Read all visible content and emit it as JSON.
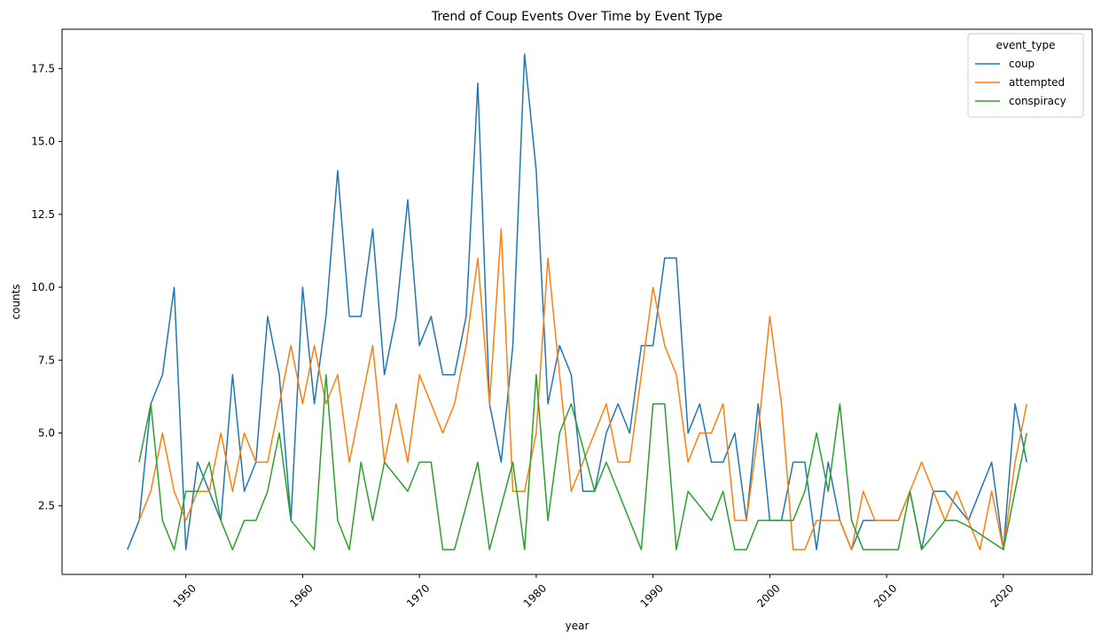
{
  "chart_data": {
    "type": "line",
    "title": "Trend of Coup Events Over Time by Event Type",
    "xlabel": "year",
    "ylabel": "counts",
    "xlim": [
      1939.4,
      2027.6
    ],
    "ylim": [
      0.15,
      18.85
    ],
    "xticks": [
      1950,
      1960,
      1970,
      1980,
      1990,
      2000,
      2010,
      2020
    ],
    "xtick_labels": [
      "1950",
      "1960",
      "1970",
      "1980",
      "1990",
      "2000",
      "2010",
      "2020"
    ],
    "xtick_rotation": 45,
    "yticks": [
      2.5,
      5.0,
      7.5,
      10.0,
      12.5,
      15.0,
      17.5
    ],
    "ytick_labels": [
      "2.5",
      "5.0",
      "7.5",
      "10.0",
      "12.5",
      "15.0",
      "17.5"
    ],
    "grid": false,
    "legend": {
      "title": "event_type",
      "placement": "upper-right"
    },
    "series": [
      {
        "name": "coup",
        "color": "#1f77b4",
        "x": [
          1945,
          1946,
          1947,
          1948,
          1949,
          1950,
          1951,
          1952,
          1953,
          1954,
          1955,
          1956,
          1957,
          1958,
          1959,
          1960,
          1961,
          1962,
          1963,
          1964,
          1965,
          1966,
          1967,
          1968,
          1969,
          1970,
          1971,
          1972,
          1973,
          1974,
          1975,
          1976,
          1977,
          1978,
          1979,
          1980,
          1981,
          1982,
          1983,
          1984,
          1985,
          1986,
          1987,
          1988,
          1989,
          1990,
          1991,
          1992,
          1993,
          1994,
          1995,
          1996,
          1997,
          1998,
          1999,
          2000,
          2001,
          2002,
          2003,
          2004,
          2005,
          2006,
          2007,
          2008,
          2009,
          2010,
          2011,
          2012,
          2013,
          2014,
          2015,
          2016,
          2017,
          2018,
          2019,
          2020,
          2021,
          2022
        ],
        "y": [
          1,
          2,
          6,
          7,
          10,
          1,
          4,
          3,
          2,
          7,
          3,
          4,
          9,
          7,
          2,
          10,
          6,
          9,
          14,
          9,
          9,
          12,
          7,
          9,
          13,
          8,
          9,
          7,
          7,
          9,
          17,
          6,
          4,
          8,
          18,
          14,
          6,
          8,
          7,
          3,
          3,
          5,
          6,
          5,
          8,
          8,
          11,
          11,
          5,
          6,
          4,
          4,
          5,
          2,
          6,
          2,
          2,
          4,
          4,
          1,
          4,
          2,
          1,
          2,
          2,
          2,
          2,
          3,
          1,
          3,
          3,
          2.5,
          2,
          3,
          4,
          1,
          6,
          4
        ]
      },
      {
        "name": "attempted",
        "color": "#ff7f0e",
        "x": [
          1946,
          1947,
          1948,
          1949,
          1950,
          1951,
          1952,
          1953,
          1954,
          1955,
          1956,
          1957,
          1958,
          1959,
          1960,
          1961,
          1962,
          1963,
          1964,
          1965,
          1966,
          1967,
          1968,
          1969,
          1970,
          1971,
          1972,
          1973,
          1974,
          1975,
          1976,
          1977,
          1978,
          1979,
          1980,
          1981,
          1982,
          1983,
          1984,
          1985,
          1986,
          1987,
          1988,
          1989,
          1990,
          1991,
          1992,
          1993,
          1994,
          1995,
          1996,
          1997,
          1998,
          1999,
          2000,
          2001,
          2002,
          2003,
          2004,
          2005,
          2006,
          2007,
          2008,
          2009,
          2010,
          2011,
          2012,
          2013,
          2014,
          2015,
          2016,
          2017,
          2018,
          2019,
          2020,
          2021,
          2022
        ],
        "y": [
          2,
          3,
          5,
          3,
          2,
          3,
          3,
          5,
          3,
          5,
          4,
          4,
          6,
          8,
          6,
          8,
          6,
          7,
          4,
          6,
          8,
          4,
          6,
          4,
          7,
          6,
          5,
          6,
          8,
          11,
          6,
          12,
          3,
          3,
          5,
          11,
          7,
          3,
          4,
          5,
          6,
          4,
          4,
          7,
          10,
          8,
          7,
          4,
          5,
          5,
          6,
          2,
          2,
          5,
          9,
          6,
          1,
          1,
          2,
          2,
          2,
          1,
          3,
          2,
          2,
          2,
          3,
          4,
          3,
          2,
          3,
          2,
          1,
          3,
          1,
          4,
          6
        ]
      },
      {
        "name": "conspiracy",
        "color": "#2ca02c",
        "x": [
          1946,
          1947,
          1948,
          1949,
          1950,
          1951,
          1952,
          1953,
          1954,
          1955,
          1956,
          1957,
          1958,
          1959,
          1961,
          1962,
          1963,
          1964,
          1965,
          1966,
          1967,
          1969,
          1970,
          1971,
          1972,
          1973,
          1975,
          1976,
          1978,
          1979,
          1980,
          1981,
          1982,
          1983,
          1985,
          1986,
          1989,
          1990,
          1991,
          1992,
          1993,
          1995,
          1996,
          1997,
          1998,
          1999,
          2000,
          2001,
          2002,
          2003,
          2004,
          2005,
          2006,
          2007,
          2008,
          2011,
          2012,
          2013,
          2015,
          2016,
          2017,
          2020,
          2022
        ],
        "y": [
          4,
          6,
          2,
          1,
          3,
          3,
          4,
          2,
          1,
          2,
          2,
          3,
          5,
          2,
          1,
          7,
          2,
          1,
          4,
          2,
          4,
          3,
          4,
          4,
          1,
          1,
          4,
          1,
          4,
          1,
          7,
          2,
          5,
          6,
          3,
          4,
          1,
          6,
          6,
          1,
          3,
          2,
          3,
          1,
          1,
          2,
          2,
          2,
          2,
          3,
          5,
          3,
          6,
          2,
          1,
          1,
          3,
          1,
          2,
          2,
          1.8,
          1,
          5
        ]
      }
    ]
  }
}
